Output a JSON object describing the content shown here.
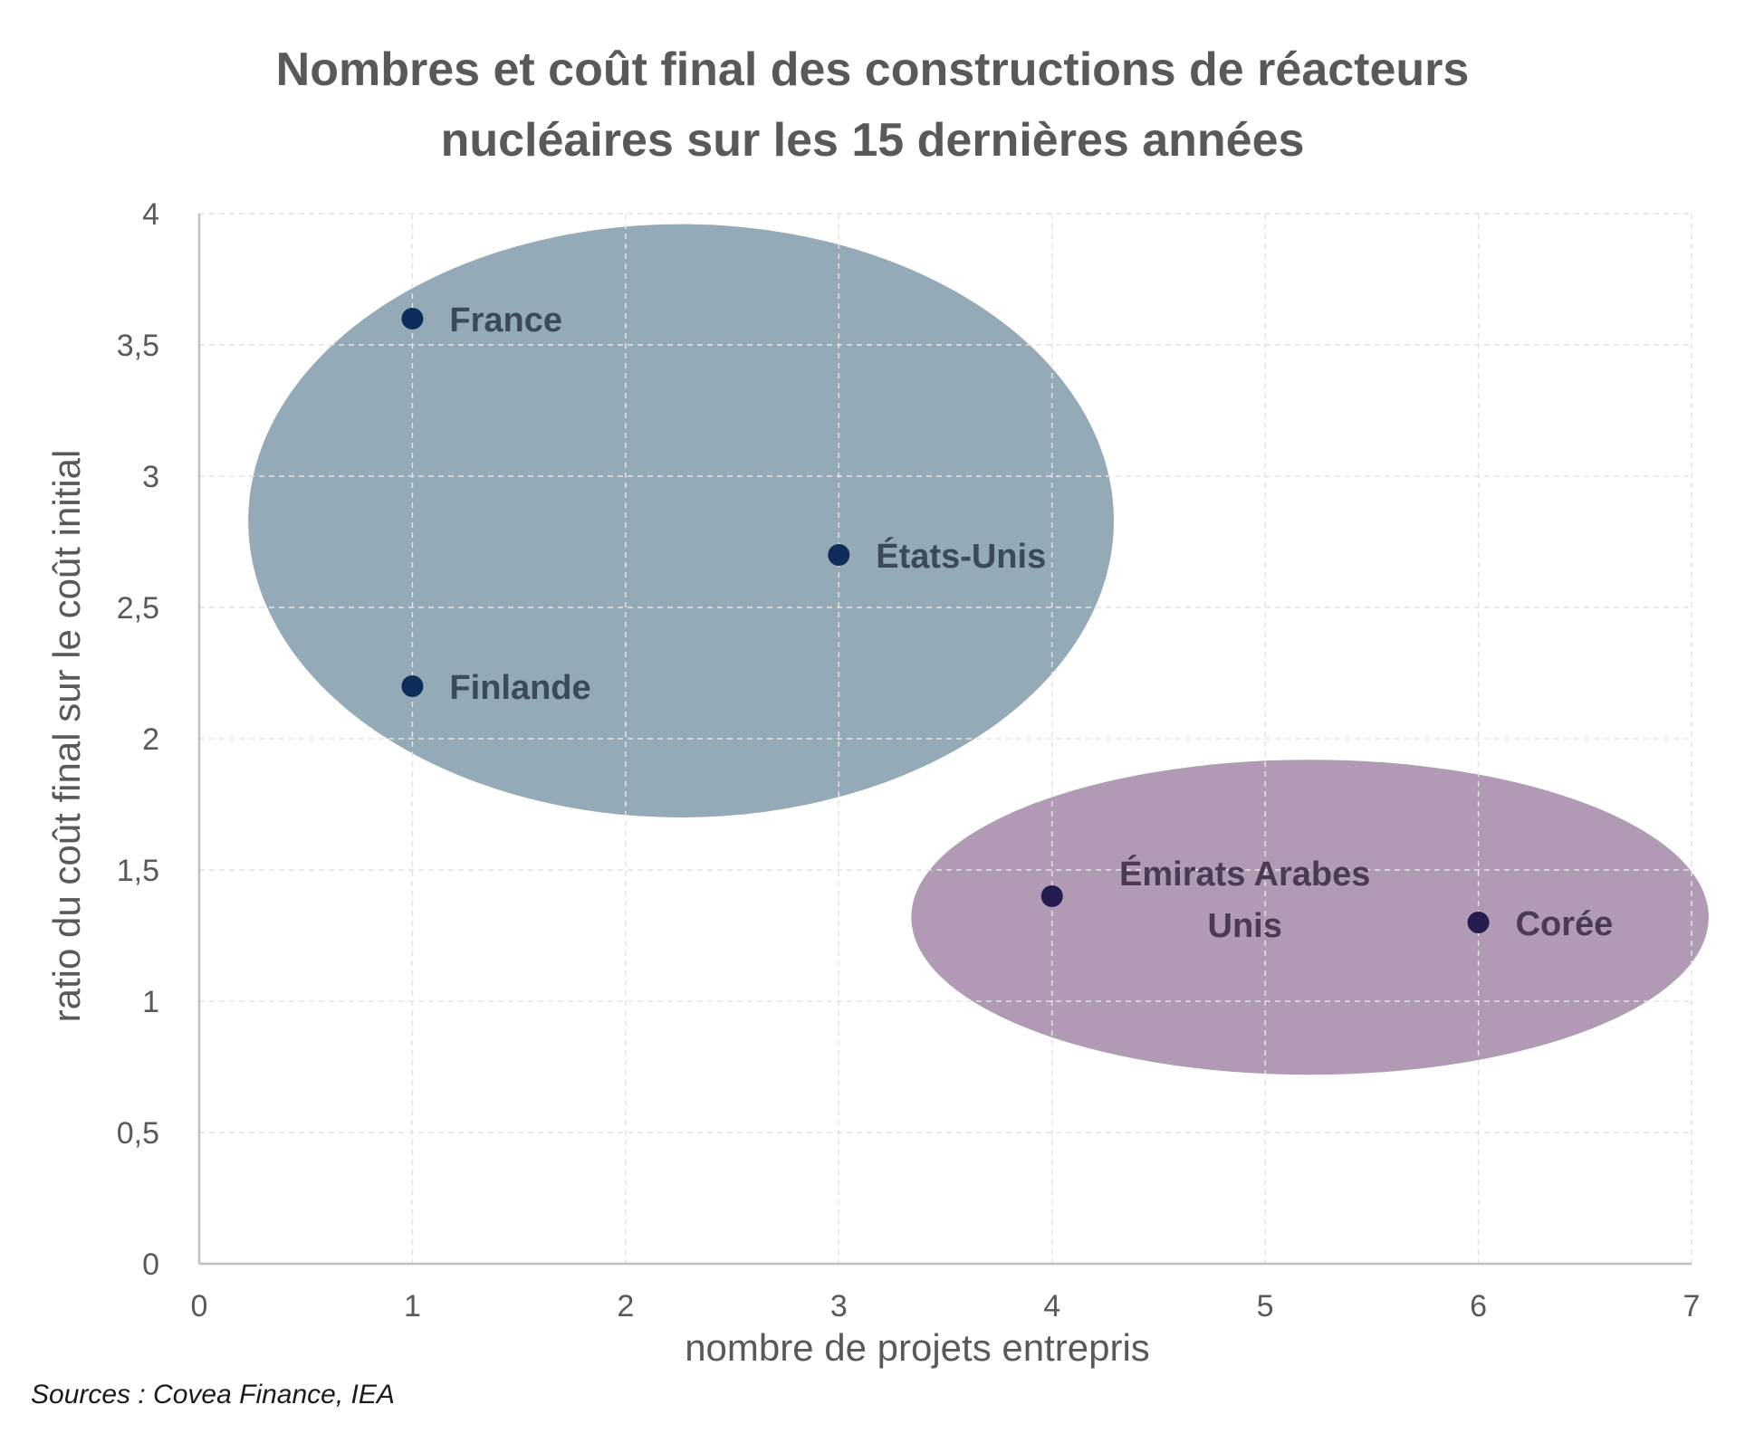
{
  "chart_data": {
    "type": "scatter",
    "title": [
      "Nombres et coût final des constructions de réacteurs",
      "nucléaires sur les 15 dernières années"
    ],
    "xlabel": "nombre de projets entrepris",
    "ylabel": "ratio du coût final sur le coût initial",
    "xlim": [
      0,
      7
    ],
    "ylim": [
      0,
      4
    ],
    "xticks": [
      0,
      1,
      2,
      3,
      4,
      5,
      6,
      7
    ],
    "xtick_labels": [
      "0",
      "1",
      "2",
      "3",
      "4",
      "5",
      "6",
      "7"
    ],
    "yticks": [
      0,
      0.5,
      1,
      1.5,
      2,
      2.5,
      3,
      3.5,
      4
    ],
    "ytick_labels": [
      "0",
      "0,5",
      "1",
      "1,5",
      "2",
      "2,5",
      "3",
      "3,5",
      "4"
    ],
    "grid": true,
    "points": [
      {
        "label": [
          "France"
        ],
        "x": 1,
        "y": 3.6,
        "group": "high"
      },
      {
        "label": [
          "Finlande"
        ],
        "x": 1,
        "y": 2.2,
        "group": "high"
      },
      {
        "label": [
          "États-Unis"
        ],
        "x": 3,
        "y": 2.7,
        "group": "high"
      },
      {
        "label": [
          "Émirats Arabes",
          "Unis"
        ],
        "x": 4,
        "y": 1.4,
        "group": "low"
      },
      {
        "label": [
          "Corée"
        ],
        "x": 6,
        "y": 1.3,
        "group": "low"
      }
    ],
    "groups": [
      {
        "id": "high",
        "cx": 2.26,
        "cy": 2.83,
        "rx": 2.03,
        "ry": 1.13,
        "fill": "#94aab7",
        "point_color": "#0f2d5a",
        "label_color": "#3a4a56"
      },
      {
        "id": "low",
        "cx": 5.21,
        "cy": 1.32,
        "rx": 1.87,
        "ry": 0.6,
        "fill": "#b09ab4",
        "point_color": "#241c4f",
        "label_color": "#4a3a52"
      }
    ],
    "colors": {
      "grid": "#e3e3e3",
      "axis": "#bfbfbf",
      "text": "#595959"
    }
  },
  "source": "Sources : Covea Finance, IEA"
}
